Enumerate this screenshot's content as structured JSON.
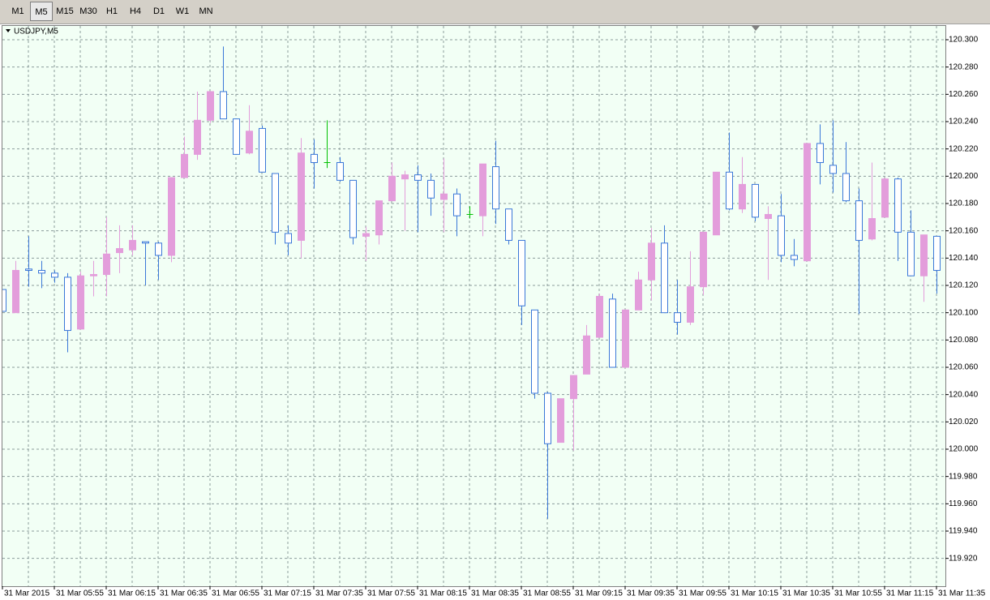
{
  "timeframes": [
    "M1",
    "M5",
    "M15",
    "M30",
    "H1",
    "H4",
    "D1",
    "W1",
    "MN"
  ],
  "chart_data": {
    "type": "candlestick",
    "title": "USDJPY,M5",
    "categories": [
      "31 Mar 2015",
      null,
      null,
      null,
      "31 Mar 05:55",
      null,
      null,
      null,
      "31 Mar 06:15",
      null,
      null,
      null,
      "31 Mar 06:35",
      null,
      null,
      null,
      "31 Mar 06:55",
      null,
      null,
      null,
      "31 Mar 07:15",
      null,
      null,
      null,
      "31 Mar 07:35",
      null,
      null,
      null,
      "31 Mar 07:55",
      null,
      null,
      null,
      "31 Mar 08:15",
      null,
      null,
      null,
      "31 Mar 08:35",
      null,
      null,
      null,
      "31 Mar 08:55",
      null,
      null,
      null,
      "31 Mar 09:15",
      null,
      null,
      null,
      "31 Mar 09:35",
      null,
      null,
      null,
      "31 Mar 09:55",
      null,
      null,
      null,
      "31 Mar 10:15",
      null,
      null,
      null,
      "31 Mar 10:35",
      null,
      null,
      null,
      "31 Mar 10:55",
      null,
      null,
      null,
      "31 Mar 11:15",
      null,
      null,
      null,
      "31 Mar 11:35"
    ],
    "open": [
      120.117,
      120.1,
      120.132,
      120.131,
      120.129,
      120.126,
      120.088,
      120.127,
      120.128,
      120.144,
      120.146,
      120.152,
      120.151,
      120.142,
      120.199,
      120.216,
      120.241,
      120.262,
      120.242,
      120.217,
      120.235,
      120.202,
      120.158,
      120.153,
      120.216,
      120.21,
      120.21,
      120.197,
      120.156,
      120.157,
      120.182,
      120.198,
      120.201,
      120.197,
      120.183,
      120.187,
      120.172,
      120.171,
      120.207,
      120.176,
      120.153,
      120.102,
      120.041,
      120.005,
      120.037,
      120.055,
      120.082,
      120.11,
      120.06,
      120.102,
      120.124,
      120.151,
      120.1,
      120.093,
      120.119,
      120.157,
      120.203,
      120.176,
      120.194,
      120.169,
      120.171,
      120.142,
      120.138,
      120.224,
      120.208,
      120.202,
      120.182,
      120.154,
      120.17,
      120.198,
      120.159,
      120.127,
      120.156
    ],
    "high": [
      120.117,
      120.138,
      120.156,
      120.138,
      120.131,
      120.129,
      120.13,
      120.138,
      120.17,
      120.164,
      120.164,
      120.152,
      120.152,
      120.199,
      120.229,
      120.262,
      120.262,
      120.295,
      120.242,
      120.252,
      120.237,
      120.202,
      120.164,
      120.228,
      120.227,
      120.241,
      120.214,
      120.197,
      120.163,
      120.182,
      120.21,
      120.204,
      120.208,
      120.202,
      120.213,
      120.191,
      120.178,
      120.209,
      120.226,
      120.176,
      120.153,
      120.102,
      120.042,
      120.037,
      120.054,
      120.091,
      120.114,
      120.114,
      120.102,
      120.13,
      120.162,
      120.164,
      120.124,
      120.145,
      120.159,
      120.203,
      120.232,
      120.214,
      120.194,
      120.178,
      120.187,
      120.154,
      120.224,
      120.238,
      120.241,
      120.225,
      120.191,
      120.21,
      120.199,
      120.199,
      120.175,
      120.157,
      120.156
    ],
    "low": [
      120.101,
      120.1,
      120.119,
      120.118,
      120.122,
      120.071,
      120.088,
      120.112,
      120.112,
      120.129,
      120.142,
      120.12,
      120.124,
      120.137,
      120.199,
      120.212,
      120.239,
      120.242,
      120.216,
      120.216,
      120.203,
      120.15,
      120.142,
      120.14,
      120.191,
      120.206,
      120.196,
      120.15,
      120.138,
      120.15,
      120.182,
      120.16,
      120.159,
      120.171,
      120.159,
      120.156,
      120.169,
      120.156,
      120.165,
      120.15,
      120.091,
      120.037,
      119.949,
      120.005,
      119.999,
      120.055,
      120.082,
      120.06,
      120.06,
      120.102,
      120.109,
      120.1,
      120.084,
      120.091,
      120.113,
      120.157,
      120.175,
      120.173,
      120.167,
      120.124,
      120.137,
      120.134,
      120.138,
      120.194,
      120.188,
      120.181,
      120.099,
      120.153,
      120.17,
      120.138,
      120.127,
      120.108,
      120.114
    ],
    "close": [
      120.101,
      120.131,
      120.131,
      120.129,
      120.126,
      120.087,
      120.127,
      120.128,
      120.143,
      120.147,
      120.153,
      120.151,
      120.142,
      120.199,
      120.216,
      120.241,
      120.262,
      120.242,
      120.216,
      120.233,
      120.203,
      120.159,
      120.151,
      120.217,
      120.21,
      120.21,
      120.197,
      120.155,
      120.158,
      120.182,
      120.2,
      120.201,
      120.197,
      120.184,
      120.187,
      120.171,
      120.172,
      120.209,
      120.176,
      120.153,
      120.105,
      120.041,
      120.004,
      120.037,
      120.054,
      120.083,
      120.112,
      120.06,
      120.102,
      120.124,
      120.151,
      120.1,
      120.093,
      120.119,
      120.159,
      120.203,
      120.176,
      120.194,
      120.17,
      120.172,
      120.142,
      120.139,
      120.224,
      120.21,
      120.202,
      120.182,
      120.153,
      120.169,
      120.198,
      120.159,
      120.127,
      120.157,
      120.131
    ],
    "ylim": [
      119.8996,
      120.3101
    ],
    "yticks": [
      {
        "value": 120.3,
        "label": "120.300"
      },
      {
        "value": 120.28,
        "label": "120.280"
      },
      {
        "value": 120.26,
        "label": "120.260"
      },
      {
        "value": 120.24,
        "label": "120.240"
      },
      {
        "value": 120.22,
        "label": "120.220"
      },
      {
        "value": 120.2,
        "label": "120.200"
      },
      {
        "value": 120.18,
        "label": "120.180"
      },
      {
        "value": 120.16,
        "label": "120.160"
      },
      {
        "value": 120.14,
        "label": "120.140"
      },
      {
        "value": 120.12,
        "label": "120.120"
      },
      {
        "value": 120.1,
        "label": "120.100"
      },
      {
        "value": 120.08,
        "label": "120.080"
      },
      {
        "value": 120.06,
        "label": "120.060"
      },
      {
        "value": 120.04,
        "label": "120.040"
      },
      {
        "value": 120.02,
        "label": "120.020"
      },
      {
        "value": 120,
        "label": "120.000"
      },
      {
        "value": 119.98,
        "label": "119.980"
      },
      {
        "value": 119.96,
        "label": "119.960"
      },
      {
        "value": 119.94,
        "label": "119.940"
      },
      {
        "value": 119.92,
        "label": "119.920"
      }
    ],
    "grid": true,
    "up_color": "#e39ddb",
    "down_color": "#3b78d8",
    "doji_color": "#00c000",
    "down_fill": "#ffffff",
    "background": "#f2fff5",
    "grid_color": "#8c9c9c"
  }
}
